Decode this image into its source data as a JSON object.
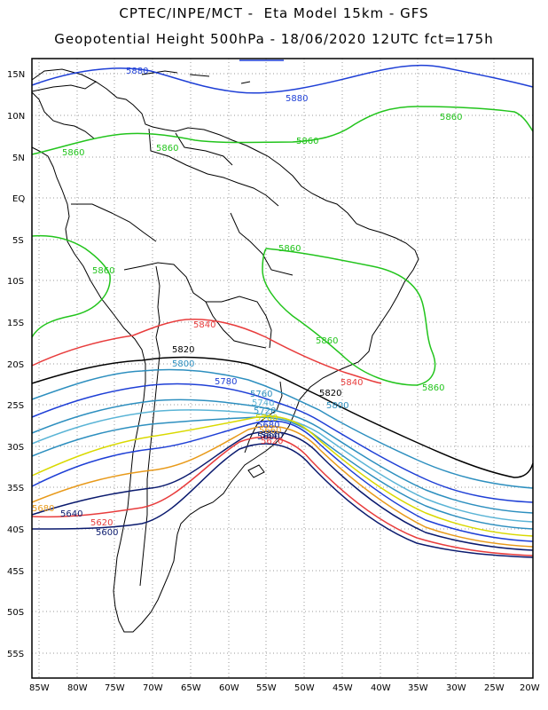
{
  "title_line1": "CPTEC/INPE/MCT -  Eta Model 15km - GFS",
  "title_line2": "Geopotential Height 500hPa - 18/06/2020 12UTC fct=175h",
  "lat_labels": [
    "15N",
    "10N",
    "5N",
    "EQ",
    "5S",
    "10S",
    "15S",
    "20S",
    "25S",
    "30S",
    "35S",
    "40S",
    "45S",
    "50S",
    "55S"
  ],
  "lon_labels": [
    "85W",
    "80W",
    "75W",
    "70W",
    "65W",
    "60W",
    "55W",
    "50W",
    "45W",
    "40W",
    "35W",
    "30W",
    "25W",
    "20W"
  ],
  "contour_labels": [
    {
      "text": "5880",
      "color": "#1e3fd6"
    },
    {
      "text": "5880",
      "color": "#1e3fd6"
    },
    {
      "text": "5860",
      "color": "#22c41c"
    },
    {
      "text": "5860",
      "color": "#22c41c"
    },
    {
      "text": "5860",
      "color": "#22c41c"
    },
    {
      "text": "5860",
      "color": "#22c41c"
    },
    {
      "text": "5860",
      "color": "#22c41c"
    },
    {
      "text": "5860",
      "color": "#22c41c"
    },
    {
      "text": "5860",
      "color": "#22c41c"
    },
    {
      "text": "5860",
      "color": "#22c41c"
    },
    {
      "text": "5840",
      "color": "#e83c3c"
    },
    {
      "text": "5840",
      "color": "#e83c3c"
    },
    {
      "text": "5820",
      "color": "#000000"
    },
    {
      "text": "5820",
      "color": "#000000"
    },
    {
      "text": "5800",
      "color": "#2d8fbf"
    },
    {
      "text": "5800",
      "color": "#2d8fbf"
    },
    {
      "text": "5780",
      "color": "#1e3fd6"
    },
    {
      "text": "5760",
      "color": "#2d8fbf"
    },
    {
      "text": "5740",
      "color": "#5ab4d6"
    },
    {
      "text": "5720",
      "color": "#2d8fbf"
    },
    {
      "text": "5700",
      "color": "#d9d900"
    },
    {
      "text": "5680",
      "color": "#1e3fd6"
    },
    {
      "text": "5660",
      "color": "#e89a1a"
    },
    {
      "text": "5640",
      "color": "#0a1a6e"
    },
    {
      "text": "5620",
      "color": "#e83c3c"
    },
    {
      "text": "5600",
      "color": "#0a1a6e"
    },
    {
      "text": "5680",
      "color": "#e89a1a"
    },
    {
      "text": "5640",
      "color": "#0a1a6e"
    },
    {
      "text": "5620",
      "color": "#e83c3c"
    },
    {
      "text": "5600",
      "color": "#0a1a6e"
    }
  ]
}
